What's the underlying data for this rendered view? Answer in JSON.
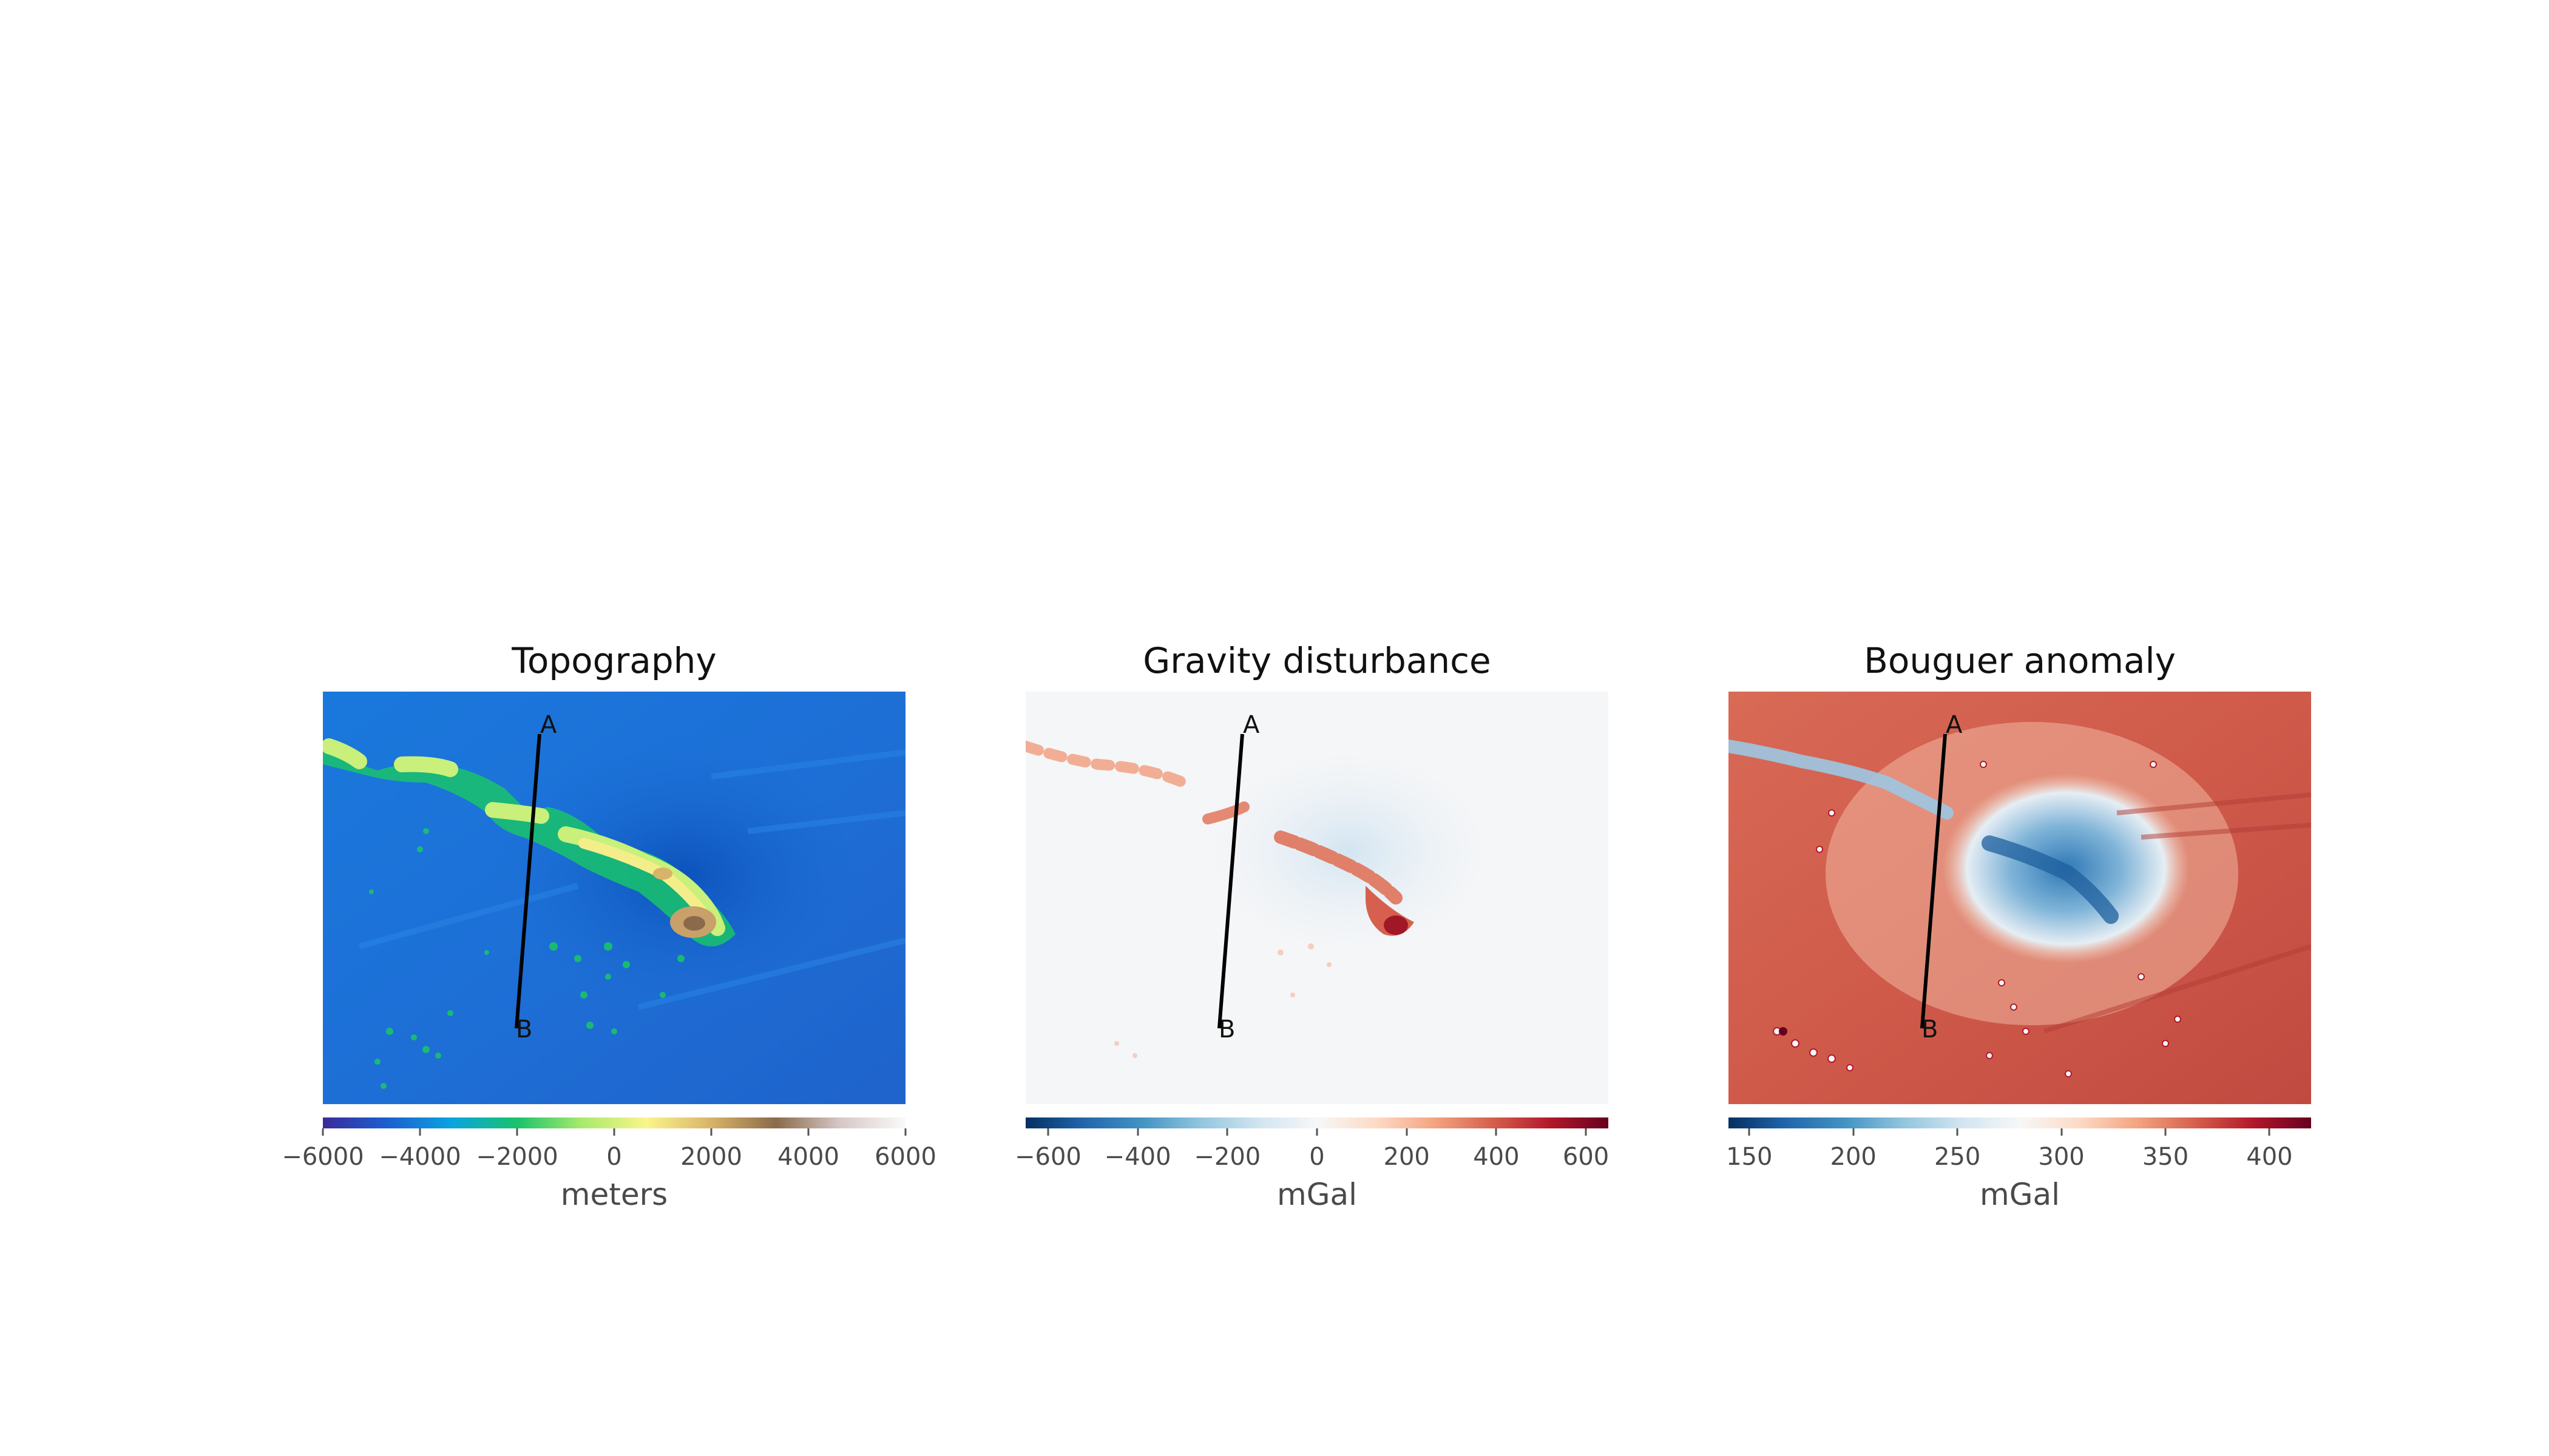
{
  "chart_data": [
    {
      "type": "heatmap",
      "title": "Topography",
      "colorbar": {
        "label": "meters",
        "range": [
          -6000,
          6000
        ],
        "ticks": [
          "−6000",
          "−4000",
          "−2000",
          "0",
          "2000",
          "4000",
          "6000"
        ],
        "tick_values": [
          -6000,
          -4000,
          -2000,
          0,
          2000,
          4000,
          6000
        ],
        "colormap": [
          "#3b2a9a",
          "#1b5fd1",
          "#0aa4e0",
          "#19c36b",
          "#a8ea6c",
          "#fbf58a",
          "#d8b36a",
          "#8a6a4a",
          "#d8c8c8",
          "#fafafa"
        ]
      },
      "profile": {
        "start_label": "A",
        "end_label": "B"
      },
      "grid": false
    },
    {
      "type": "heatmap",
      "title": "Gravity disturbance",
      "colorbar": {
        "label": "mGal",
        "range": [
          -650,
          650
        ],
        "ticks": [
          "−600",
          "−400",
          "−200",
          "0",
          "200",
          "400",
          "600"
        ],
        "tick_values": [
          -600,
          -400,
          -200,
          0,
          200,
          400,
          600
        ],
        "colormap": [
          "#053061",
          "#2166ac",
          "#4393c3",
          "#92c5de",
          "#d1e5f0",
          "#f7f7f7",
          "#fddbc7",
          "#f4a582",
          "#d6604d",
          "#b2182b",
          "#67001f"
        ]
      },
      "profile": {
        "start_label": "A",
        "end_label": "B"
      },
      "grid": false
    },
    {
      "type": "heatmap",
      "title": "Bouguer anomaly",
      "colorbar": {
        "label": "mGal",
        "range": [
          140,
          420
        ],
        "ticks": [
          "150",
          "200",
          "250",
          "300",
          "350",
          "400"
        ],
        "tick_values": [
          150,
          200,
          250,
          300,
          350,
          400
        ],
        "colormap": [
          "#053061",
          "#2166ac",
          "#4393c3",
          "#92c5de",
          "#d1e5f0",
          "#f7f7f7",
          "#fddbc7",
          "#f4a582",
          "#d6604d",
          "#b2182b",
          "#67001f"
        ]
      },
      "profile": {
        "start_label": "A",
        "end_label": "B"
      },
      "grid": false
    }
  ]
}
